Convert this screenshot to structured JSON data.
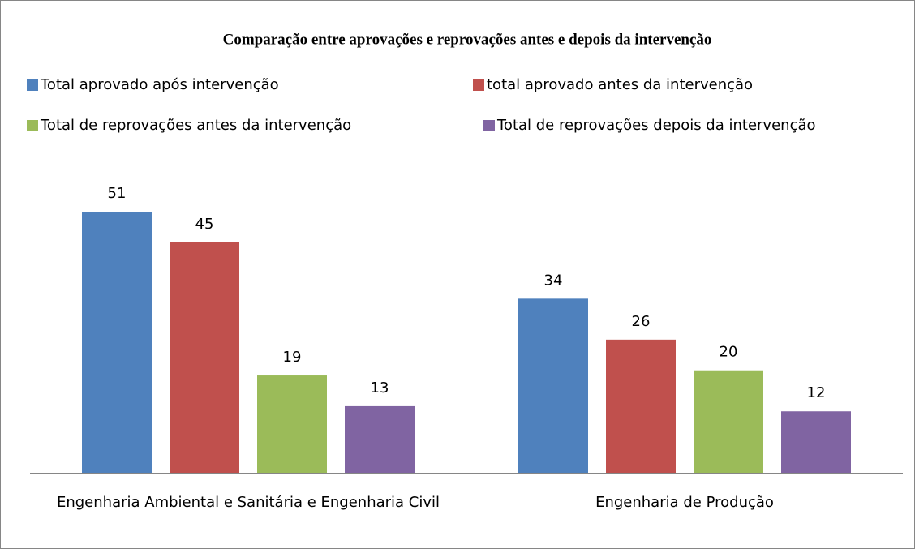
{
  "chart_data": {
    "type": "bar",
    "title": "Comparação entre aprovações e reprovações antes e depois da intervenção",
    "categories": [
      "Engenharia Ambiental e Sanitária e Engenharia Civil",
      "Engenharia de Produção"
    ],
    "series": [
      {
        "name": "Total aprovado após intervenção",
        "color": "#4f81bd",
        "values": [
          51,
          34
        ]
      },
      {
        "name": "total aprovado antes da intervenção",
        "color": "#c0504d",
        "values": [
          45,
          26
        ]
      },
      {
        "name": "Total de reprovações antes da intervenção",
        "color": "#9bbb59",
        "values": [
          19,
          20
        ]
      },
      {
        "name": "Total de reprovações depois da intervenção",
        "color": "#8064a2",
        "values": [
          13,
          12
        ]
      }
    ],
    "legend": "top"
  }
}
